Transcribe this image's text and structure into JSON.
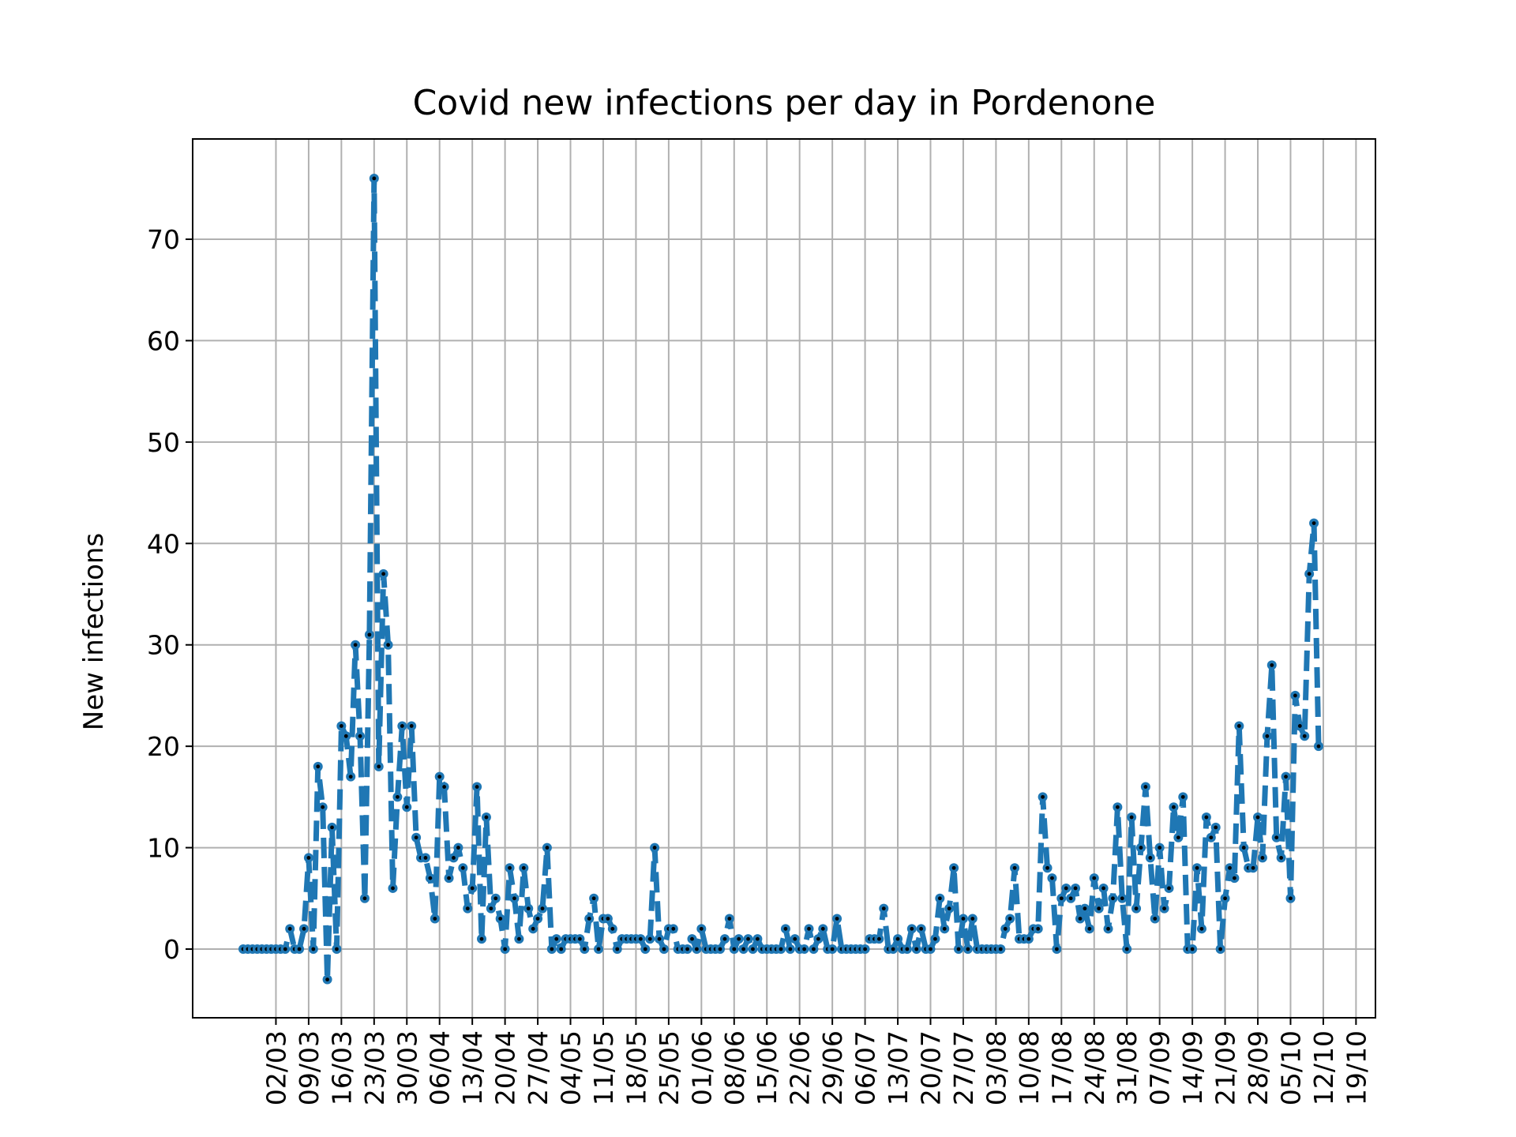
{
  "chart_data": {
    "type": "line",
    "title": "Covid new infections per day in Pordenone",
    "xlabel": "",
    "ylabel": "New infections",
    "x_axis": {
      "start_date": "2020-02-24",
      "end_date": "2020-10-20",
      "tick_labels": [
        "02/03",
        "09/03",
        "16/03",
        "23/03",
        "30/03",
        "06/04",
        "13/04",
        "20/04",
        "27/04",
        "04/05",
        "11/05",
        "18/05",
        "25/05",
        "01/06",
        "08/06",
        "15/06",
        "22/06",
        "29/06",
        "06/07",
        "13/07",
        "20/07",
        "27/07",
        "03/08",
        "10/08",
        "17/08",
        "24/08",
        "31/08",
        "07/09",
        "14/09",
        "21/09",
        "28/09",
        "05/10",
        "12/10",
        "19/10"
      ],
      "tick_label_rotation": 90
    },
    "y_axis": {
      "ylim": [
        -7,
        80
      ],
      "ticks": [
        0,
        10,
        20,
        30,
        40,
        50,
        60,
        70
      ],
      "tick_labels": [
        "0",
        "10",
        "20",
        "30",
        "40",
        "50",
        "60",
        "70"
      ]
    },
    "grid": true,
    "line_style": "dashed",
    "marker": "circle",
    "colors": {
      "line": "#1f77b4",
      "marker_center": "#000000",
      "grid": "#b0b0b0",
      "axes": "#000000"
    },
    "series": [
      {
        "name": "",
        "values": [
          0,
          0,
          0,
          0,
          0,
          0,
          0,
          0,
          0,
          0,
          2,
          0,
          0,
          2,
          9,
          0,
          18,
          14,
          -3,
          12,
          0,
          22,
          21,
          17,
          30,
          21,
          5,
          31,
          76,
          18,
          37,
          30,
          6,
          15,
          22,
          14,
          22,
          11,
          9,
          9,
          7,
          3,
          17,
          16,
          7,
          9,
          10,
          8,
          4,
          6,
          16,
          1,
          13,
          4,
          5,
          3,
          0,
          8,
          5,
          1,
          8,
          4,
          2,
          3,
          4,
          10,
          0,
          1,
          0,
          1,
          1,
          1,
          1,
          0,
          3,
          5,
          0,
          3,
          3,
          2,
          0,
          1,
          1,
          1,
          1,
          1,
          0,
          1,
          10,
          1,
          0,
          2,
          2,
          0,
          0,
          0,
          1,
          0,
          2,
          0,
          0,
          0,
          0,
          1,
          3,
          0,
          1,
          0,
          1,
          0,
          1,
          0,
          0,
          0,
          0,
          0,
          2,
          0,
          1,
          0,
          0,
          2,
          0,
          1,
          2,
          0,
          0,
          3,
          0,
          0,
          0,
          0,
          0,
          0,
          1,
          1,
          1,
          4,
          0,
          0,
          1,
          0,
          0,
          2,
          0,
          2,
          0,
          0,
          1,
          5,
          2,
          4,
          8,
          0,
          3,
          0,
          3,
          0,
          0,
          0,
          0,
          0,
          0,
          2,
          3,
          8,
          1,
          1,
          1,
          2,
          2,
          15,
          8,
          7,
          0,
          5,
          6,
          5,
          6,
          3,
          4,
          2,
          7,
          4,
          6,
          2,
          5,
          14,
          5,
          0,
          13,
          4,
          10,
          16,
          9,
          3,
          10,
          4,
          6,
          14,
          11,
          15,
          0,
          0,
          8,
          2,
          13,
          11,
          12,
          0,
          5,
          8,
          7,
          22,
          10,
          8,
          8,
          13,
          9,
          21,
          28,
          11,
          9,
          17,
          5,
          25,
          22,
          21,
          37,
          42,
          20
        ]
      }
    ]
  }
}
